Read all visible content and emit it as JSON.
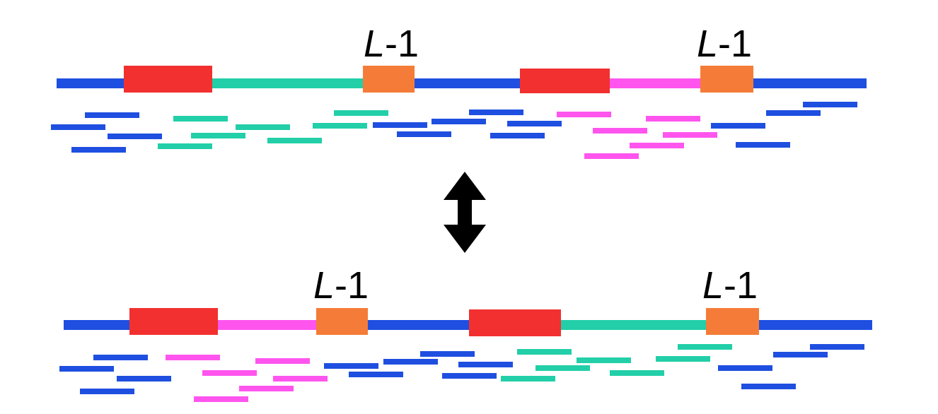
{
  "labels": [
    {
      "variable": "L",
      "suffix": "-1"
    },
    {
      "variable": "L",
      "suffix": "-1"
    },
    {
      "variable": "L",
      "suffix": "-1"
    },
    {
      "variable": "L",
      "suffix": "-1"
    }
  ]
}
